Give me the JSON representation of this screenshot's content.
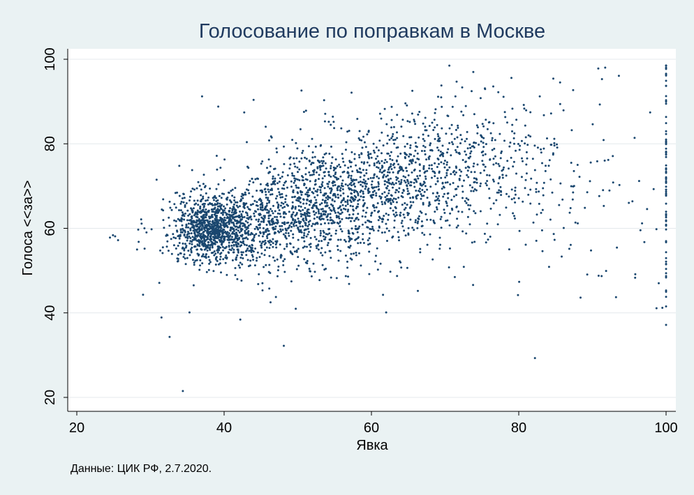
{
  "chart_data": {
    "type": "scatter",
    "title": "Голосование по поправкам в Москве",
    "xlabel": "Явка",
    "ylabel": "Голоса <<за>>",
    "xlim": [
      20,
      100
    ],
    "ylim": [
      20,
      100
    ],
    "xticks": [
      20,
      40,
      60,
      80,
      100
    ],
    "yticks": [
      20,
      40,
      60,
      80,
      100
    ],
    "grid": "horizontal",
    "legend": "none",
    "marker_color": "#1a476f",
    "background_color": "#eaf2f3",
    "plot_background_color": "#ffffff",
    "note": "Данные: ЦИК РФ, 2.7.2020.",
    "clusters": [
      {
        "cx": 38.5,
        "cy": 60,
        "sx": 2.6,
        "sy": 3.8,
        "n": 850
      },
      {
        "cx": 44,
        "cy": 61,
        "sx": 5.2,
        "sy": 6,
        "n": 600
      },
      {
        "cx": 53,
        "cy": 66,
        "sx": 5,
        "sy": 7,
        "n": 700
      },
      {
        "cx": 63,
        "cy": 71,
        "sx": 5.5,
        "sy": 7.5,
        "n": 650
      },
      {
        "cx": 74,
        "cy": 75,
        "sx": 5.5,
        "sy": 8,
        "n": 300
      },
      {
        "cx": 86,
        "cy": 72,
        "sx": 7,
        "sy": 12,
        "n": 130
      },
      {
        "cx": 100,
        "cy": 70,
        "sx": 0.12,
        "sy": 15,
        "n": 75
      }
    ],
    "outliers": [
      [
        24.5,
        57.8
      ],
      [
        25.2,
        58.1
      ],
      [
        25.6,
        57.2
      ],
      [
        28.4,
        56.8
      ],
      [
        28.8,
        61.1
      ],
      [
        29.0,
        44.3
      ],
      [
        29.2,
        55.2
      ],
      [
        31.2,
        47.1
      ],
      [
        31.5,
        38.9
      ],
      [
        32.6,
        34.3
      ],
      [
        34.4,
        21.5
      ],
      [
        37.0,
        91.2
      ],
      [
        39.2,
        88.8
      ],
      [
        42.2,
        38.4
      ],
      [
        44.0,
        90.4
      ],
      [
        48.1,
        32.2
      ],
      [
        50.5,
        92.6
      ],
      [
        57.3,
        92.1
      ],
      [
        62.0,
        40.1
      ],
      [
        69.5,
        93.8
      ],
      [
        75.4,
        93.1
      ],
      [
        79.0,
        95.6
      ],
      [
        82.2,
        29.3
      ],
      [
        90.8,
        97.8
      ],
      [
        91.3,
        95.3
      ],
      [
        93.2,
        43.7
      ],
      [
        98.7,
        41.1
      ],
      [
        99.5,
        41.2
      ],
      [
        100,
        98.0
      ],
      [
        100,
        96.4
      ],
      [
        100,
        94.9
      ],
      [
        100,
        93.7
      ],
      [
        100,
        45.3
      ],
      [
        95.8,
        48.3
      ],
      [
        99.0,
        47.0
      ],
      [
        79.9,
        44.2
      ],
      [
        73.8,
        46.6
      ],
      [
        66.3,
        45.2
      ],
      [
        46.3,
        42.5
      ],
      [
        35.3,
        40.1
      ]
    ]
  }
}
